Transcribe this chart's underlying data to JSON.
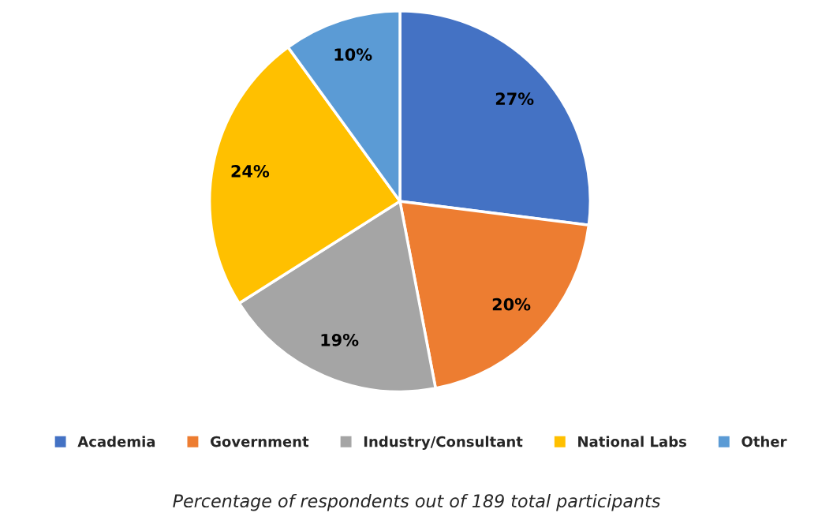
{
  "chart_data": {
    "type": "pie",
    "categories": [
      "Academia",
      "Government",
      "Industry/Consultant",
      "National Labs",
      "Other"
    ],
    "values": [
      27,
      20,
      19,
      24,
      10
    ],
    "colors": [
      "#4472c4",
      "#ed7d31",
      "#a5a5a5",
      "#ffc000",
      "#5b9bd5"
    ],
    "value_labels": [
      "27%",
      "20%",
      "19%",
      "24%",
      "10%"
    ],
    "legend": "bottom",
    "annotations": [
      "Percentage of respondents out of 189 total participants"
    ]
  }
}
